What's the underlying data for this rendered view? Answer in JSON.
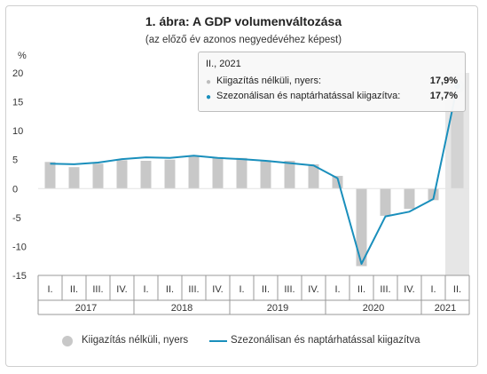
{
  "chart_data": {
    "type": "bar+line",
    "title": "1. ábra: A GDP volumenváltozása",
    "subtitle": "(az előző év azonos negyedévéhez képest)",
    "ylabel": "%",
    "ylim": [
      -15,
      20
    ],
    "yticks": [
      -15,
      -10,
      -5,
      0,
      5,
      10,
      15,
      20
    ],
    "quarter_labels": [
      "I.",
      "II.",
      "III.",
      "IV.",
      "I.",
      "II.",
      "III.",
      "IV.",
      "I.",
      "II.",
      "III.",
      "IV.",
      "I.",
      "II.",
      "III.",
      "IV.",
      "I.",
      "II."
    ],
    "year_labels": [
      "2017",
      "2018",
      "2019",
      "2020",
      "2021"
    ],
    "year_groups": [
      4,
      4,
      4,
      4,
      2
    ],
    "series": [
      {
        "name": "Kiigazítás nélküli, nyers",
        "type": "bar",
        "color": "#c8c8c8",
        "values": [
          4.6,
          3.7,
          4.3,
          4.9,
          4.8,
          5.0,
          5.6,
          5.3,
          5.3,
          4.9,
          4.8,
          4.2,
          2.2,
          -13.4,
          -4.7,
          -3.5,
          -2.0,
          17.9
        ]
      },
      {
        "name": "Szezonálisan és naptárhatással kiigazítva",
        "type": "line",
        "color": "#1a8fbc",
        "values": [
          4.3,
          4.2,
          4.5,
          5.1,
          5.4,
          5.3,
          5.7,
          5.3,
          5.1,
          4.8,
          4.4,
          4.0,
          1.8,
          -13.0,
          -4.8,
          -4.0,
          -1.8,
          17.7
        ]
      }
    ],
    "highlight_index": 17,
    "grid": false,
    "legend_position": "bottom"
  },
  "tooltip": {
    "header": "II., 2021",
    "rows": [
      {
        "label": "Kiigazítás nélküli, nyers:",
        "value": "17,9%",
        "color": "#bdbdbd"
      },
      {
        "label": "Szezonálisan és naptárhatással kiigazítva:",
        "value": "17,7%",
        "color": "#1a8fbc"
      }
    ]
  },
  "legend": {
    "bar_label": "Kiigazítás nélküli, nyers",
    "line_label": "Szezonálisan és naptárhatással kiigazítva"
  }
}
